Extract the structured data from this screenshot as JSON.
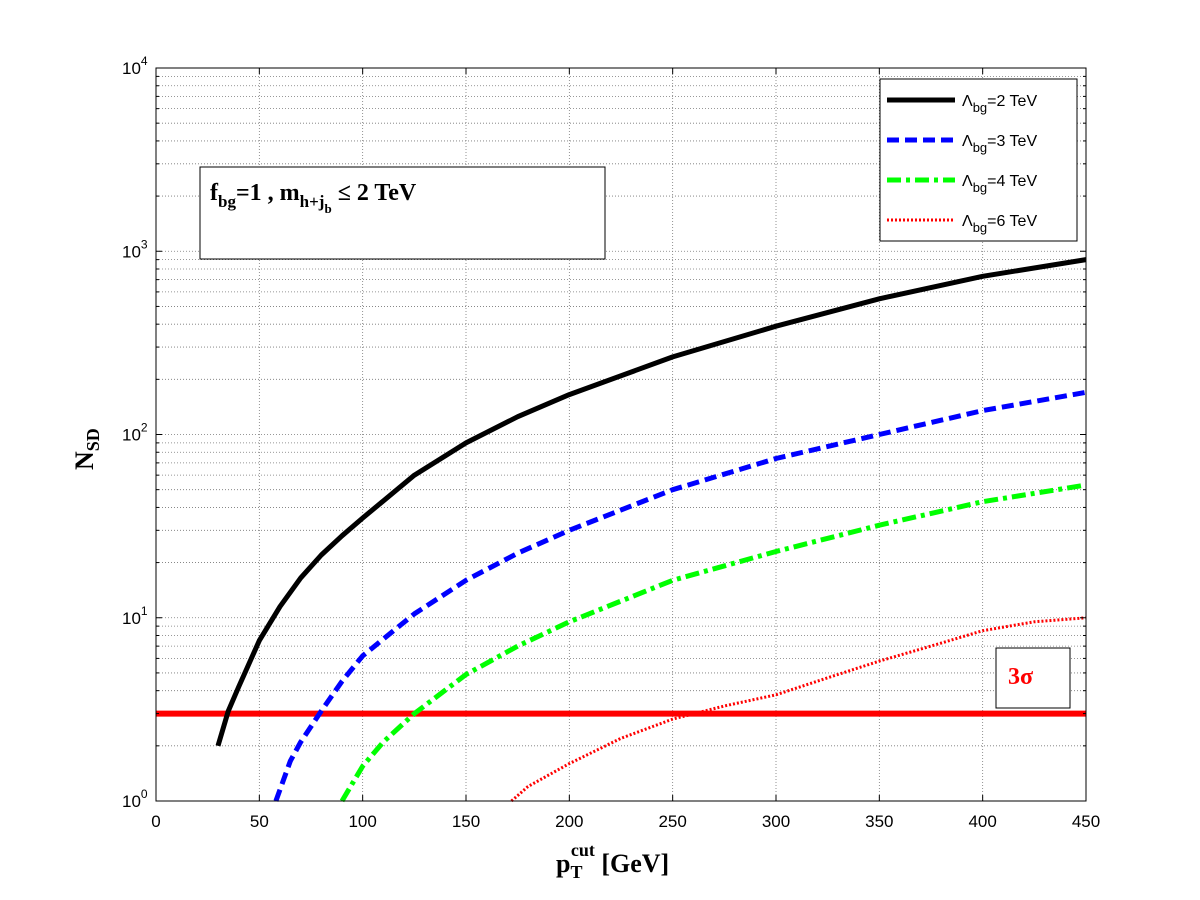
{
  "chart_data": {
    "type": "line",
    "x_scale": "linear",
    "y_scale": "log",
    "xlim": [
      0,
      450
    ],
    "ylim": [
      1,
      10000
    ],
    "x_ticks": [
      0,
      50,
      100,
      150,
      200,
      250,
      300,
      350,
      400,
      450
    ],
    "x_tick_labels": [
      "0",
      "50",
      "100",
      "150",
      "200",
      "250",
      "300",
      "350",
      "400",
      "450"
    ],
    "y_ticks": [
      {
        "value": 1,
        "base": "10",
        "exp": "0"
      },
      {
        "value": 10,
        "base": "10",
        "exp": "1"
      },
      {
        "value": 100,
        "base": "10",
        "exp": "2"
      },
      {
        "value": 1000,
        "base": "10",
        "exp": "3"
      },
      {
        "value": 10000,
        "base": "10",
        "exp": "4"
      }
    ],
    "grid": true,
    "xlabel": {
      "main": "p",
      "sub": "T",
      "sup": "cut",
      "unit": " [GeV]"
    },
    "ylabel": {
      "main": "N",
      "sub": "SD"
    },
    "annotation": {
      "f_main": "f",
      "f_sub": "bg",
      "f_rest": "=1 , m",
      "m_sub": "h+j",
      "m_subsub": "b",
      "m_rest": " ≤ 2 TeV"
    },
    "threshold": {
      "value": 3,
      "label": "3σ",
      "color": "#ff0000"
    },
    "legend_position": "top-right",
    "series": [
      {
        "name_main": "Λ",
        "name_sub": "bg",
        "name_rest": "=2 TeV",
        "color": "#000000",
        "style": "solid",
        "x": [
          30,
          35,
          40,
          50,
          60,
          70,
          80,
          90,
          100,
          125,
          150,
          175,
          200,
          250,
          300,
          350,
          400,
          450
        ],
        "y": [
          2.0,
          3.1,
          4.2,
          7.5,
          11.5,
          16.5,
          22,
          28,
          35,
          60,
          90,
          125,
          165,
          265,
          390,
          550,
          730,
          900
        ]
      },
      {
        "name_main": "Λ",
        "name_sub": "bg",
        "name_rest": "=3 TeV",
        "color": "#0000ff",
        "style": "dashed",
        "x": [
          58,
          65,
          70,
          80,
          90,
          100,
          125,
          150,
          175,
          200,
          250,
          300,
          350,
          400,
          450
        ],
        "y": [
          1.0,
          1.65,
          2.1,
          3.1,
          4.5,
          6.2,
          10.5,
          16,
          22.5,
          30,
          50,
          74,
          100,
          135,
          170
        ]
      },
      {
        "name_main": "Λ",
        "name_sub": "bg",
        "name_rest": "=4 TeV",
        "color": "#00ff00",
        "style": "dashdot",
        "x": [
          90,
          100,
          110,
          125,
          150,
          175,
          200,
          250,
          300,
          350,
          400,
          450
        ],
        "y": [
          1.0,
          1.55,
          2.1,
          3.0,
          4.9,
          7.0,
          9.5,
          16,
          23,
          32,
          43,
          53
        ]
      },
      {
        "name_main": "Λ",
        "name_sub": "bg",
        "name_rest": "=6 TeV",
        "color": "#ff0000",
        "style": "dotted",
        "x": [
          172,
          180,
          200,
          225,
          250,
          275,
          300,
          325,
          350,
          375,
          400,
          425,
          450
        ],
        "y": [
          1.0,
          1.2,
          1.6,
          2.2,
          2.8,
          3.3,
          3.8,
          4.7,
          5.8,
          7.0,
          8.5,
          9.5,
          10
        ]
      }
    ]
  }
}
